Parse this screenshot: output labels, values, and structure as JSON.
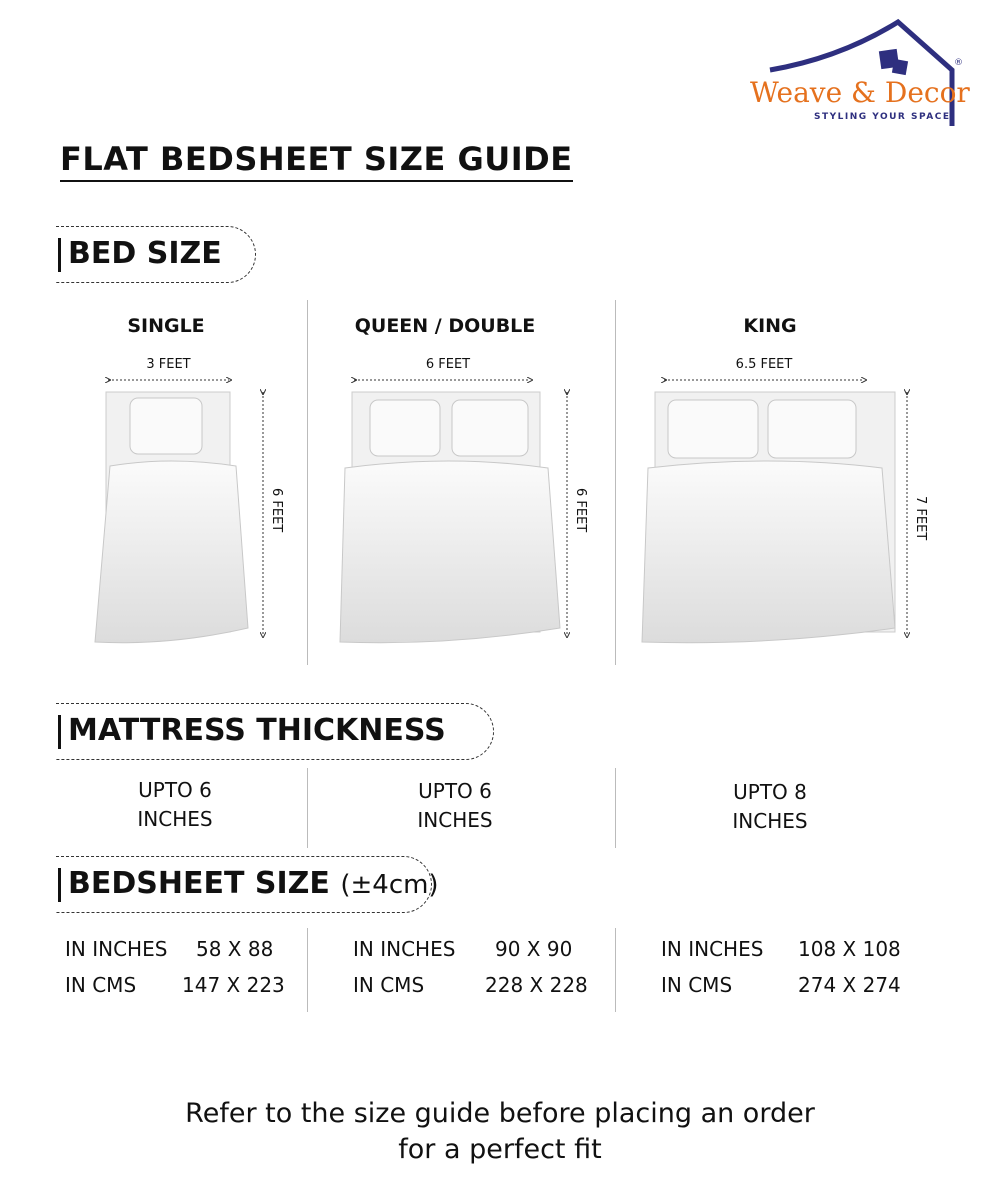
{
  "brand": {
    "name": "Weave & Decor",
    "tagline": "STYLING YOUR SPACE",
    "registered": "®",
    "colors": {
      "navy": "#2e2f7f",
      "orange": "#e5711e"
    }
  },
  "title": "FLAT BEDSHEET SIZE GUIDE",
  "sections": {
    "bed_size": "BED SIZE",
    "mattress": "MATTRESS THICKNESS",
    "bedsheet": "BEDSHEET SIZE",
    "bedsheet_tolerance": "(±4cm)"
  },
  "columns": [
    {
      "name": "SINGLE",
      "width": "3 FEET",
      "length": "6 FEET",
      "thickness_1": "UPTO 6",
      "thickness_2": "INCHES",
      "inches_label": "IN INCHES",
      "inches": "58 X 88",
      "cms_label": "IN CMS",
      "cms": "147 X 223"
    },
    {
      "name": "QUEEN / DOUBLE",
      "width": "6 FEET",
      "length": "6 FEET",
      "thickness_1": "UPTO 6",
      "thickness_2": "INCHES",
      "inches_label": "IN INCHES",
      "inches": "90 X 90",
      "cms_label": "IN CMS",
      "cms": "228 X 228"
    },
    {
      "name": "KING",
      "width": "6.5 FEET",
      "length": "7 FEET",
      "thickness_1": "UPTO 8",
      "thickness_2": "INCHES",
      "inches_label": "IN INCHES",
      "inches": "108 X 108",
      "cms_label": "IN CMS",
      "cms": "274 X 274"
    }
  ],
  "footer": {
    "line1": "Refer to the size guide before placing an order",
    "line2": "for a perfect fit"
  }
}
